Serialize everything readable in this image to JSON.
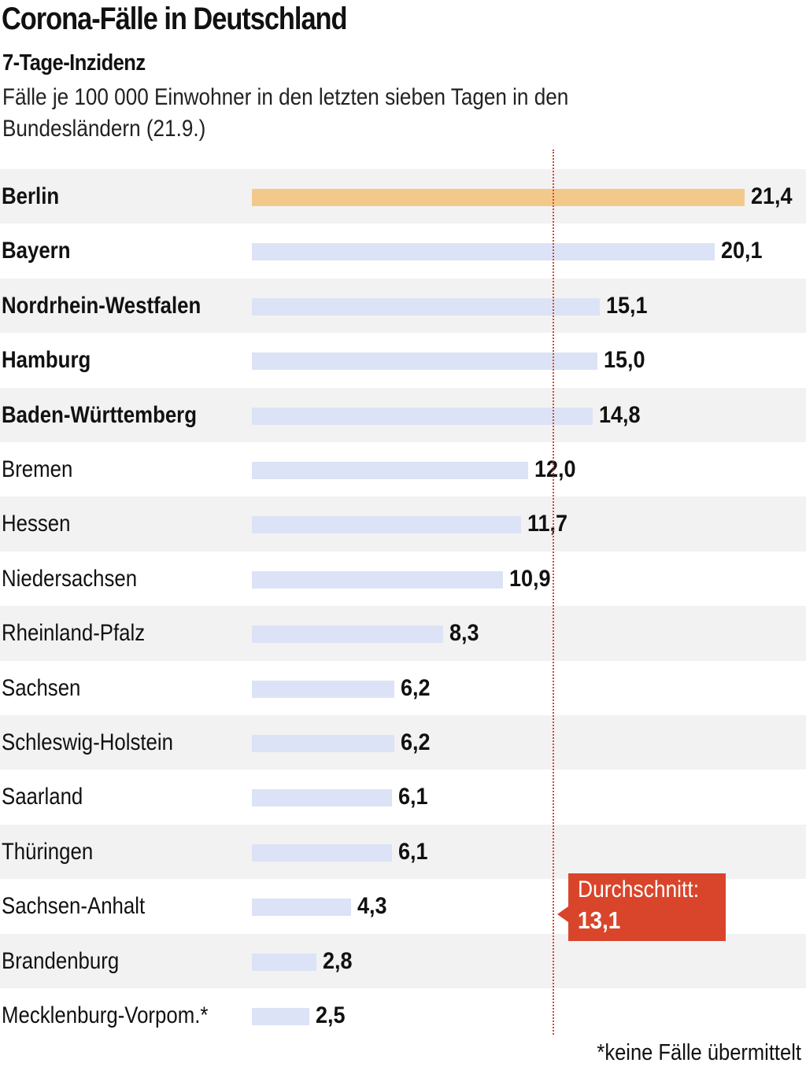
{
  "chart_data": {
    "type": "bar",
    "orientation": "horizontal",
    "title": "Corona-Fälle in Deutschland",
    "subtitle": "7-Tage-Inzidenz",
    "description": "Fälle je 100 000 Einwohner in den letzten sieben Tagen in den Bundesländern (21.9.)",
    "categories": [
      "Berlin",
      "Bayern",
      "Nordrhein-Westfalen",
      "Hamburg",
      "Baden-Württemberg",
      "Bremen",
      "Hessen",
      "Niedersachsen",
      "Rheinland-Pfalz",
      "Sachsen",
      "Schleswig-Holstein",
      "Saarland",
      "Thüringen",
      "Sachsen-Anhalt",
      "Brandenburg",
      "Mecklenburg-Vorpom.*"
    ],
    "values": [
      21.4,
      20.1,
      15.1,
      15.0,
      14.8,
      12.0,
      11.7,
      10.9,
      8.3,
      6.2,
      6.2,
      6.1,
      6.1,
      4.3,
      2.8,
      2.5
    ],
    "value_labels": [
      "21,4",
      "20,1",
      "15,1",
      "15,0",
      "14,8",
      "12,0",
      "11,7",
      "10,9",
      "8,3",
      "6,2",
      "6,2",
      "6,1",
      "6,1",
      "4,3",
      "2,8",
      "2,5"
    ],
    "bold_categories": [
      "Berlin",
      "Bayern",
      "Nordrhein-Westfalen",
      "Hamburg",
      "Baden-Württemberg"
    ],
    "highlight_category": "Berlin",
    "average": {
      "label": "Durchschnitt:",
      "value": 13.1,
      "value_label": "13,1"
    },
    "footnote": "*keine Fälle übermittelt",
    "xlim": [
      0,
      21.4
    ],
    "colors": {
      "bar": "#dde3f6",
      "highlight": "#f3c98b",
      "average": "#d9452b",
      "row_shade": "#f2f2f2"
    },
    "grid": false
  }
}
